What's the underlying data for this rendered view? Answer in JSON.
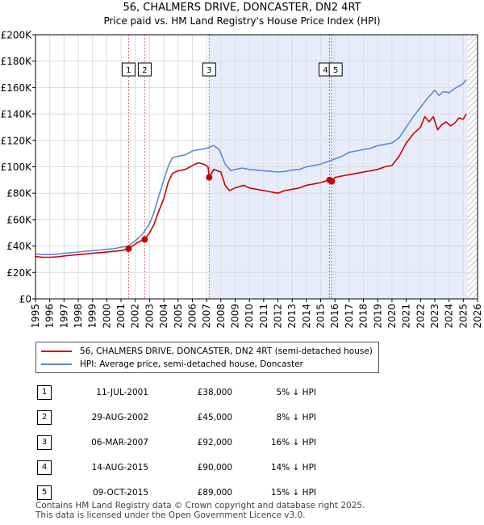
{
  "chart_data": {
    "type": "line",
    "title": "56, CHALMERS DRIVE, DONCASTER, DN2 4RT",
    "subtitle": "Price paid vs. HM Land Registry's House Price Index (HPI)",
    "xlabel": "",
    "ylabel": "",
    "xlim": [
      1995,
      2026
    ],
    "ylim": [
      0,
      200000
    ],
    "x_ticks": [
      "1995",
      "1996",
      "1997",
      "1998",
      "1999",
      "2000",
      "2001",
      "2002",
      "2003",
      "2004",
      "2005",
      "2006",
      "2007",
      "2008",
      "2009",
      "2010",
      "2011",
      "2012",
      "2013",
      "2014",
      "2015",
      "2016",
      "2017",
      "2018",
      "2019",
      "2020",
      "2021",
      "2022",
      "2023",
      "2024",
      "2025",
      "2026"
    ],
    "y_ticks": [
      {
        "value": 0,
        "label": "£0"
      },
      {
        "value": 20000,
        "label": "£20K"
      },
      {
        "value": 40000,
        "label": "£40K"
      },
      {
        "value": 60000,
        "label": "£60K"
      },
      {
        "value": 80000,
        "label": "£80K"
      },
      {
        "value": 100000,
        "label": "£100K"
      },
      {
        "value": 120000,
        "label": "£120K"
      },
      {
        "value": 140000,
        "label": "£140K"
      },
      {
        "value": 160000,
        "label": "£160K"
      },
      {
        "value": 180000,
        "label": "£180K"
      },
      {
        "value": 200000,
        "label": "£200K"
      }
    ],
    "shaded_range": [
      2007.17,
      2025.3
    ],
    "future_hatch_from": 2025.3,
    "grid": true,
    "series": [
      {
        "name": "56, CHALMERS DRIVE, DONCASTER, DN2 4RT (semi-detached house)",
        "color": "#cc0000",
        "x": [
          1995.0,
          1995.5,
          1996.0,
          1996.5,
          1997.0,
          1997.5,
          1998.0,
          1998.5,
          1999.0,
          1999.5,
          2000.0,
          2000.5,
          2001.0,
          2001.53,
          2001.53,
          2001.8,
          2002.2,
          2002.66,
          2002.66,
          2003.0,
          2003.3,
          2003.6,
          2004.0,
          2004.3,
          2004.6,
          2005.0,
          2005.5,
          2006.0,
          2006.4,
          2006.8,
          2007.1,
          2007.18,
          2007.18,
          2007.5,
          2008.0,
          2008.3,
          2008.6,
          2009.0,
          2009.3,
          2009.6,
          2010.0,
          2010.5,
          2011.0,
          2011.5,
          2012.0,
          2012.5,
          2013.0,
          2013.5,
          2014.0,
          2014.5,
          2015.0,
          2015.3,
          2015.62,
          2015.62,
          2015.77,
          2015.77,
          2016.0,
          2016.5,
          2017.0,
          2017.5,
          2018.0,
          2018.5,
          2019.0,
          2019.5,
          2020.0,
          2020.5,
          2021.0,
          2021.5,
          2022.0,
          2022.3,
          2022.6,
          2022.9,
          2023.2,
          2023.5,
          2023.8,
          2024.1,
          2024.4,
          2024.7,
          2025.0,
          2025.2
        ],
        "values": [
          32000,
          31500,
          31500,
          31800,
          32500,
          33000,
          33500,
          34000,
          34500,
          35000,
          35500,
          36000,
          36500,
          38000,
          38000,
          40000,
          43000,
          45000,
          45000,
          50000,
          56000,
          65000,
          76000,
          88000,
          95000,
          97000,
          98000,
          101000,
          103000,
          102000,
          100000,
          92000,
          92000,
          98000,
          96000,
          86000,
          82000,
          84000,
          85000,
          86000,
          84000,
          83000,
          82000,
          81000,
          80000,
          82000,
          83000,
          84000,
          86000,
          87000,
          88000,
          89000,
          90000,
          90000,
          89000,
          89000,
          92000,
          93000,
          94000,
          95000,
          96000,
          97000,
          98000,
          100000,
          101000,
          108000,
          118000,
          125000,
          130000,
          138000,
          134000,
          138000,
          128000,
          132000,
          134000,
          131000,
          133000,
          137000,
          136000,
          140000
        ]
      },
      {
        "name": "HPI: Average price, semi-detached house, Doncaster",
        "color": "#5b8bd0",
        "x": [
          1995.0,
          1995.5,
          1996.0,
          1996.5,
          1997.0,
          1997.5,
          1998.0,
          1998.5,
          1999.0,
          1999.5,
          2000.0,
          2000.5,
          2001.0,
          2001.5,
          2002.0,
          2002.5,
          2003.0,
          2003.3,
          2003.6,
          2004.0,
          2004.3,
          2004.6,
          2005.0,
          2005.5,
          2006.0,
          2006.5,
          2007.0,
          2007.5,
          2007.9,
          2008.3,
          2008.7,
          2009.0,
          2009.5,
          2010.0,
          2010.5,
          2011.0,
          2011.5,
          2012.0,
          2012.5,
          2013.0,
          2013.5,
          2014.0,
          2014.5,
          2015.0,
          2015.5,
          2016.0,
          2016.5,
          2017.0,
          2017.5,
          2018.0,
          2018.5,
          2019.0,
          2019.5,
          2020.0,
          2020.5,
          2021.0,
          2021.5,
          2022.0,
          2022.5,
          2023.0,
          2023.3,
          2023.6,
          2024.0,
          2024.5,
          2025.0,
          2025.2
        ],
        "values": [
          34000,
          33500,
          33500,
          33800,
          34500,
          35000,
          35500,
          36000,
          36500,
          37000,
          37500,
          38000,
          39000,
          40000,
          44000,
          49000,
          57000,
          65000,
          76000,
          90000,
          100000,
          107000,
          108000,
          109000,
          112000,
          113000,
          114000,
          116000,
          113000,
          102000,
          97000,
          98000,
          99000,
          98000,
          97500,
          97000,
          96500,
          96000,
          96500,
          97500,
          98000,
          100000,
          101000,
          102000,
          104000,
          106000,
          108000,
          111000,
          112000,
          113000,
          114000,
          116000,
          117000,
          118000,
          122000,
          130000,
          138000,
          145000,
          152000,
          158000,
          154000,
          157000,
          156000,
          160000,
          163000,
          166000
        ]
      }
    ],
    "sales": [
      {
        "num": "1",
        "year": 2001.53,
        "value": 38000
      },
      {
        "num": "2",
        "year": 2002.66,
        "value": 45000
      },
      {
        "num": "3",
        "year": 2007.18,
        "value": 92000
      },
      {
        "num": "4",
        "year": 2015.62,
        "value": 90000
      },
      {
        "num": "5",
        "year": 2015.77,
        "value": 89000
      }
    ]
  },
  "legend": {
    "property": "56, CHALMERS DRIVE, DONCASTER, DN2 4RT (semi-detached house)",
    "hpi": "HPI: Average price, semi-detached house, Doncaster"
  },
  "sales_table": [
    {
      "num": "1",
      "date": "11-JUL-2001",
      "price": "£38,000",
      "hpi": "5% ↓ HPI"
    },
    {
      "num": "2",
      "date": "29-AUG-2002",
      "price": "£45,000",
      "hpi": "8% ↓ HPI"
    },
    {
      "num": "3",
      "date": "06-MAR-2007",
      "price": "£92,000",
      "hpi": "16% ↓ HPI"
    },
    {
      "num": "4",
      "date": "14-AUG-2015",
      "price": "£90,000",
      "hpi": "14% ↓ HPI"
    },
    {
      "num": "5",
      "date": "09-OCT-2015",
      "price": "£89,000",
      "hpi": "15% ↓ HPI"
    }
  ],
  "footer": {
    "line1": "Contains HM Land Registry data © Crown copyright and database right 2025.",
    "line2": "This data is licensed under the Open Government Licence v3.0."
  }
}
